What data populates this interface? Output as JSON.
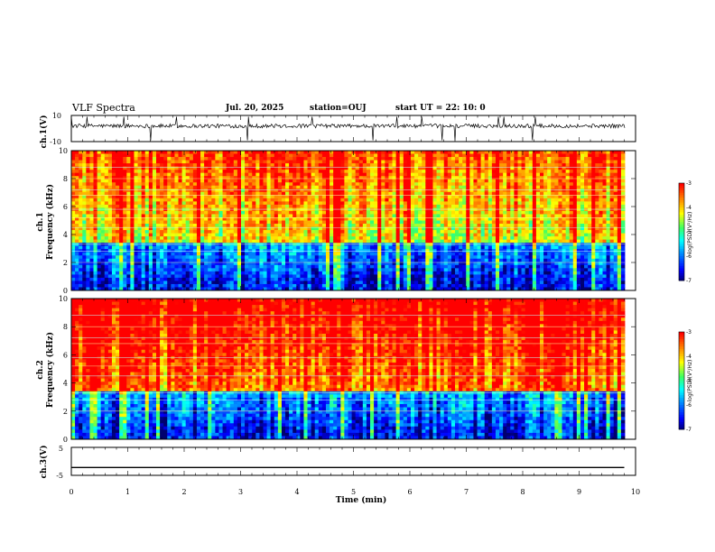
{
  "header": {
    "title": "VLF Spectra",
    "date": "Jul. 20, 2025",
    "station": "station=OUJ",
    "start": "start UT =  22: 10: 0"
  },
  "chart_data": [
    {
      "type": "line",
      "id": "ch1_waveform",
      "ylabel": "ch.1(V)",
      "ylim": [
        -10,
        10
      ],
      "ytick_labels": [
        "10",
        "-10"
      ],
      "description_values": "noisy waveform around +2 V with spikes"
    },
    {
      "type": "heatmap",
      "id": "ch1_spectrogram",
      "ylabel_line1": "ch.1",
      "ylabel_line2": "Frequency (kHz)",
      "ylim": [
        0,
        10
      ],
      "ytick_labels": [
        "10",
        "8",
        "6",
        "4",
        "2",
        "0"
      ],
      "colorbar": {
        "label": "log(PSD)(V²/Hz)",
        "range": [
          -7,
          -3
        ],
        "tick_labels": [
          "-3",
          "-4",
          "-5",
          "-6",
          "-7"
        ]
      }
    },
    {
      "type": "heatmap",
      "id": "ch2_spectrogram",
      "ylabel_line1": "ch.2",
      "ylabel_line2": "Frequency (kHz)",
      "ylim": [
        0,
        10
      ],
      "ytick_labels": [
        "10",
        "8",
        "6",
        "4",
        "2",
        "0"
      ],
      "colorbar": {
        "label": "log(PSD)(V²/Hz)",
        "range": [
          -7,
          -3
        ],
        "tick_labels": [
          "-3",
          "-4",
          "-5",
          "-6",
          "-7"
        ]
      }
    },
    {
      "type": "line",
      "id": "ch3_waveform",
      "ylabel": "ch.3(V)",
      "ylim": [
        -5,
        5
      ],
      "ytick_labels": [
        "5",
        "-5"
      ],
      "x": [
        0,
        9.8
      ],
      "y": [
        -2.2,
        -2.2
      ]
    }
  ],
  "xaxis": {
    "label": "Time (min)",
    "xlim": [
      0,
      10
    ],
    "tick_labels": [
      "0",
      "1",
      "2",
      "3",
      "4",
      "5",
      "6",
      "7",
      "8",
      "9",
      "10"
    ]
  },
  "colors": {
    "scale": [
      "#000080",
      "#0000ff",
      "#00a0ff",
      "#00ffff",
      "#40ff80",
      "#ffff00",
      "#ff8000",
      "#ff0000"
    ]
  }
}
